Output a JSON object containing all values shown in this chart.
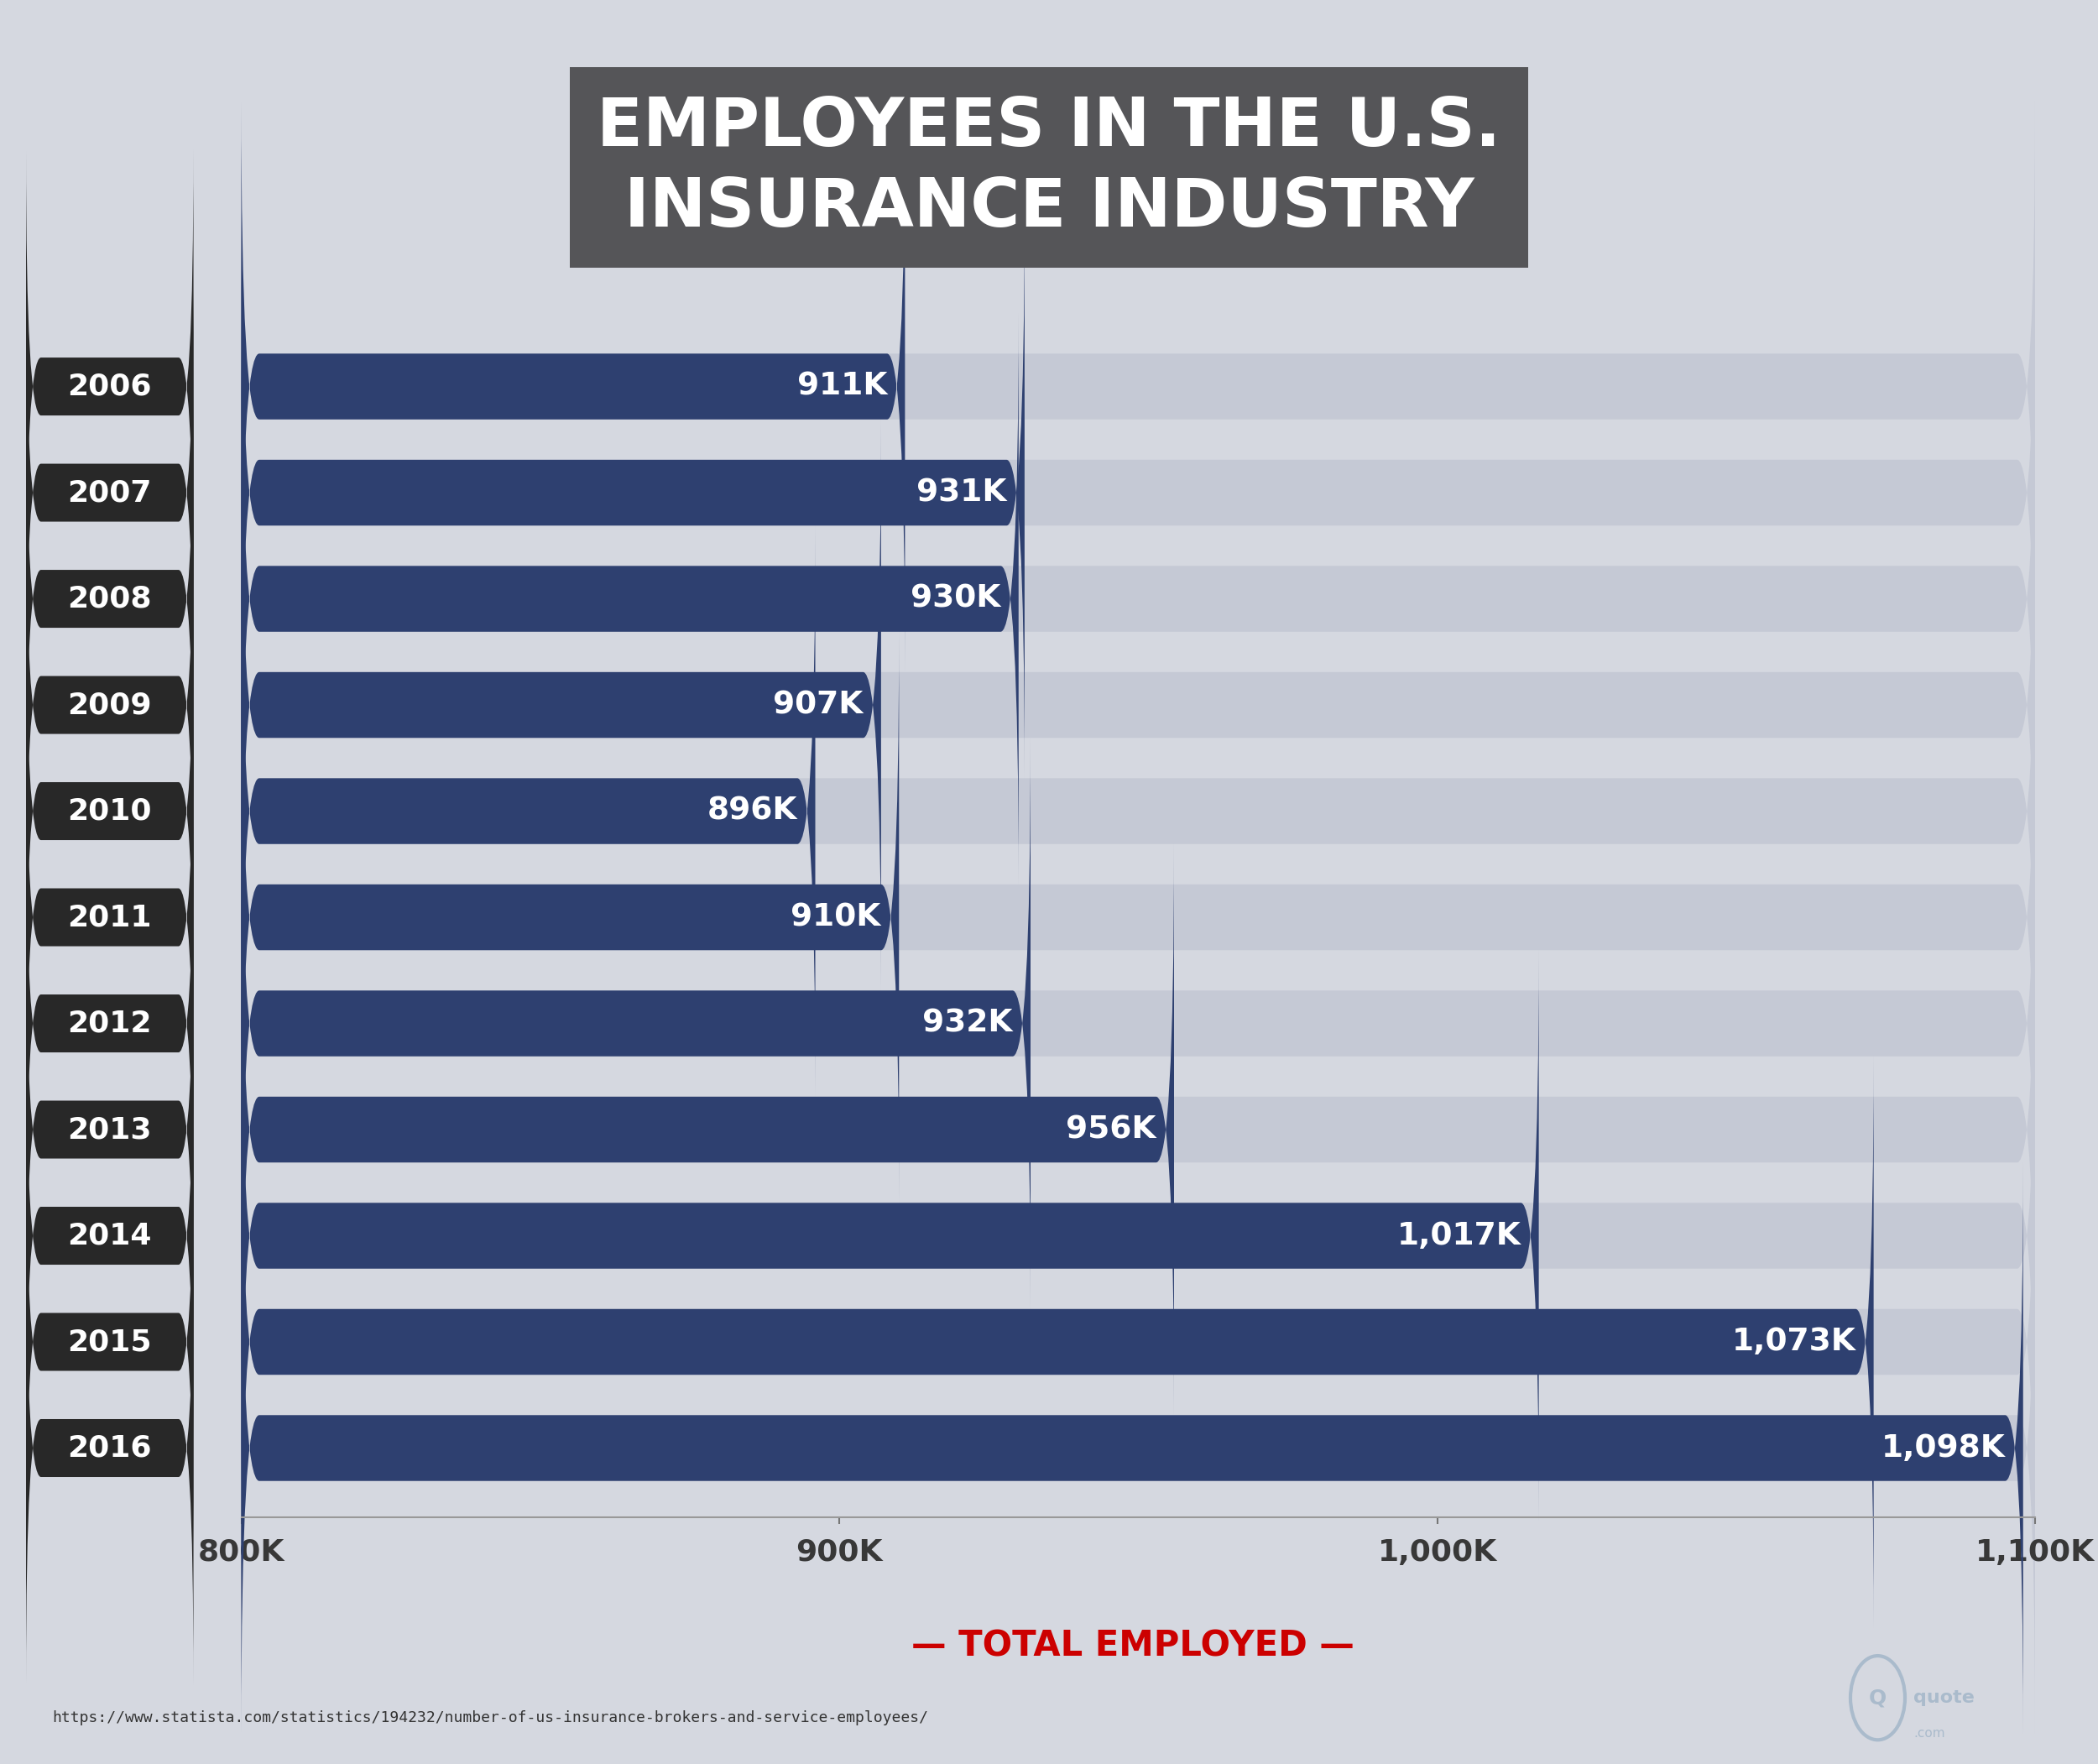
{
  "title_line1": "EMPLOYEES IN THE U.S.",
  "title_line2": "INSURANCE INDUSTRY",
  "years": [
    "2006",
    "2007",
    "2008",
    "2009",
    "2010",
    "2011",
    "2012",
    "2013",
    "2014",
    "2015",
    "2016"
  ],
  "values": [
    911,
    931,
    930,
    907,
    896,
    910,
    932,
    956,
    1017,
    1073,
    1098
  ],
  "labels": [
    "911K",
    "931K",
    "930K",
    "907K",
    "896K",
    "910K",
    "932K",
    "956K",
    "1,017K",
    "1,073K",
    "1,098K"
  ],
  "bar_color": "#2e4070",
  "bg_bar_color": "#c5c9d5",
  "background_color": "#d5d8e0",
  "title_bg_color": "#555558",
  "title_text_color": "#ffffff",
  "bar_label_color": "#ffffff",
  "year_bg_color": "#282828",
  "year_text_color": "#ffffff",
  "xlabel": "TOTAL EMPLOYED",
  "xlabel_color": "#cc0000",
  "source_text": "https://www.statista.com/statistics/194232/number-of-us-insurance-brokers-and-service-employees/",
  "xmin": 800,
  "xmax": 1100,
  "xticks": [
    800,
    900,
    1000,
    1100
  ],
  "xtick_labels": [
    "800K",
    "900K",
    "1,000K",
    "1,100K"
  ]
}
